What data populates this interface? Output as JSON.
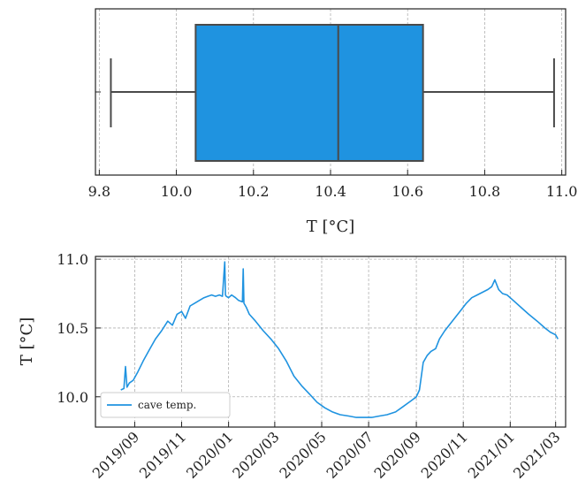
{
  "colors": {
    "accent": "#1f93e0",
    "edge": "#4a4a4a"
  },
  "chart_data": [
    {
      "type": "box",
      "orientation": "horizontal",
      "title": "",
      "xlabel": "T [°C]",
      "ylabel": "",
      "xlim": [
        9.79,
        11.01
      ],
      "xticks": [
        9.8,
        10.0,
        10.2,
        10.4,
        10.6,
        10.8,
        11.0
      ],
      "xtick_labels": [
        "9.8",
        "10.0",
        "10.2",
        "10.4",
        "10.6",
        "10.8",
        "11.0"
      ],
      "grid": true,
      "box": {
        "whisker_low": 9.83,
        "q1": 10.05,
        "median": 10.42,
        "q3": 10.64,
        "whisker_high": 10.98
      }
    },
    {
      "type": "line",
      "title": "",
      "xlabel": "",
      "ylabel": "T [°C]",
      "ylim": [
        9.78,
        11.02
      ],
      "yticks": [
        10.0,
        10.5,
        11.0
      ],
      "ytick_labels": [
        "10.0",
        "10.5",
        "11.0"
      ],
      "xlim": [
        "2019-07-12",
        "2021-03-14"
      ],
      "xticks": [
        "2019-09-01",
        "2019-11-01",
        "2020-01-01",
        "2020-03-01",
        "2020-05-01",
        "2020-07-01",
        "2020-09-01",
        "2020-11-01",
        "2021-01-01",
        "2021-03-01"
      ],
      "xtick_labels": [
        "2019/09",
        "2019/11",
        "2020/01",
        "2020/03",
        "2020/05",
        "2020/07",
        "2020/09",
        "2020/11",
        "2021/01",
        "2021/03"
      ],
      "grid": true,
      "legend_position": "lower-left",
      "series": [
        {
          "name": "cave temp.",
          "x": [
            "2019-08-14",
            "2019-08-18",
            "2019-08-20",
            "2019-08-22",
            "2019-08-25",
            "2019-08-30",
            "2019-09-05",
            "2019-09-12",
            "2019-09-20",
            "2019-09-28",
            "2019-10-06",
            "2019-10-14",
            "2019-10-20",
            "2019-10-26",
            "2019-11-01",
            "2019-11-06",
            "2019-11-12",
            "2019-11-18",
            "2019-11-24",
            "2019-11-30",
            "2019-12-05",
            "2019-12-10",
            "2019-12-15",
            "2019-12-20",
            "2019-12-24",
            "2019-12-27",
            "2019-12-28",
            "2019-12-29",
            "2020-01-01",
            "2020-01-05",
            "2020-01-10",
            "2020-01-14",
            "2020-01-19",
            "2020-01-20",
            "2020-01-21",
            "2020-01-24",
            "2020-01-28",
            "2020-02-05",
            "2020-02-15",
            "2020-02-25",
            "2020-03-06",
            "2020-03-16",
            "2020-03-26",
            "2020-04-05",
            "2020-04-15",
            "2020-04-25",
            "2020-05-05",
            "2020-05-15",
            "2020-05-25",
            "2020-06-05",
            "2020-06-15",
            "2020-06-25",
            "2020-07-05",
            "2020-07-15",
            "2020-07-25",
            "2020-08-05",
            "2020-08-15",
            "2020-08-25",
            "2020-09-01",
            "2020-09-05",
            "2020-09-10",
            "2020-09-15",
            "2020-09-20",
            "2020-09-26",
            "2020-10-01",
            "2020-10-08",
            "2020-10-15",
            "2020-10-22",
            "2020-10-29",
            "2020-11-05",
            "2020-11-12",
            "2020-11-19",
            "2020-11-26",
            "2020-12-03",
            "2020-12-08",
            "2020-12-12",
            "2020-12-17",
            "2020-12-22",
            "2020-12-28",
            "2021-01-05",
            "2021-01-15",
            "2021-01-25",
            "2021-02-05",
            "2021-02-15",
            "2021-02-22",
            "2021-03-01",
            "2021-03-04"
          ],
          "values": [
            10.05,
            10.06,
            10.22,
            10.07,
            10.1,
            10.12,
            10.18,
            10.26,
            10.34,
            10.42,
            10.48,
            10.55,
            10.52,
            10.6,
            10.62,
            10.57,
            10.66,
            10.68,
            10.7,
            10.72,
            10.73,
            10.74,
            10.73,
            10.74,
            10.73,
            10.98,
            10.74,
            10.73,
            10.72,
            10.74,
            10.72,
            10.7,
            10.69,
            10.93,
            10.68,
            10.65,
            10.6,
            10.55,
            10.48,
            10.42,
            10.35,
            10.26,
            10.15,
            10.08,
            10.02,
            9.96,
            9.92,
            9.89,
            9.87,
            9.86,
            9.85,
            9.85,
            9.85,
            9.86,
            9.87,
            9.89,
            9.93,
            9.97,
            10.0,
            10.05,
            10.25,
            10.3,
            10.33,
            10.35,
            10.42,
            10.48,
            10.53,
            10.58,
            10.63,
            10.68,
            10.72,
            10.74,
            10.76,
            10.78,
            10.8,
            10.85,
            10.78,
            10.75,
            10.74,
            10.7,
            10.65,
            10.6,
            10.55,
            10.5,
            10.47,
            10.45,
            10.42
          ]
        }
      ]
    }
  ]
}
